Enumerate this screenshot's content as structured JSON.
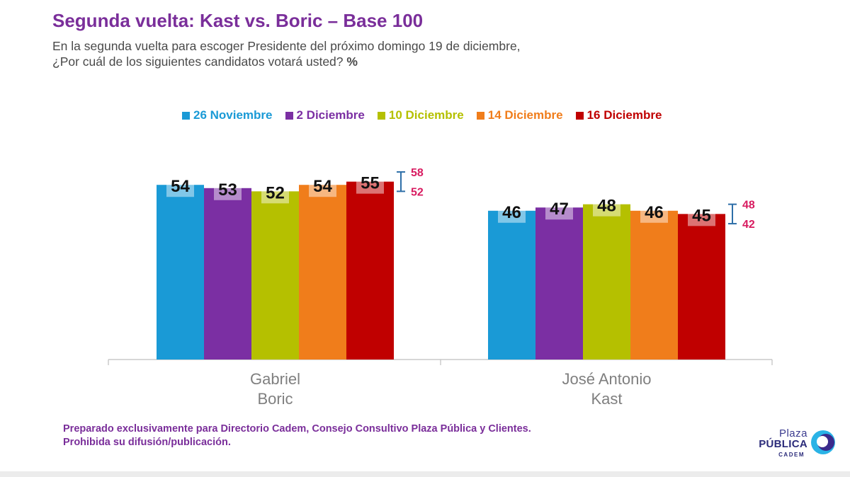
{
  "title": "Segunda vuelta: Kast vs. Boric – Base 100",
  "subtitle_line1": "En la segunda vuelta para escoger Presidente del próximo domingo 19 de diciembre,",
  "subtitle_line2": "¿Por cuál de los siguientes candidatos votará usted?",
  "subtitle_unit": "%",
  "footer_line1": "Preparado exclusivamente para Directorio Cadem, Consejo Consultivo Plaza Pública y Clientes.",
  "footer_line2": "Prohibida su difusión/publicación.",
  "logo": {
    "line1": "Plaza",
    "line2": "PÚBLICA",
    "line3": "CADEM"
  },
  "colors": {
    "title": "#7a2e9a",
    "interval": "#2e6fa8",
    "interval_label": "#d81b60",
    "axis_label": "#7f7f7f"
  },
  "chart_data": {
    "type": "bar",
    "categories": [
      {
        "label_lines": [
          "Gabriel",
          "Boric"
        ]
      },
      {
        "label_lines": [
          "José Antonio",
          "Kast"
        ]
      }
    ],
    "series": [
      {
        "name": "26 Noviembre",
        "color": "#1a9ad6",
        "values": [
          54,
          46
        ]
      },
      {
        "name": "2 Diciembre",
        "color": "#7b2fa3",
        "values": [
          53,
          47
        ]
      },
      {
        "name": "10 Diciembre",
        "color": "#b5c000",
        "values": [
          52,
          48
        ]
      },
      {
        "name": "14 Diciembre",
        "color": "#f07d1b",
        "values": [
          54,
          46
        ]
      },
      {
        "name": "16 Diciembre",
        "color": "#c00000",
        "values": [
          55,
          45
        ]
      }
    ],
    "intervals": [
      {
        "high": 58,
        "low": 52
      },
      {
        "high": 48,
        "low": 42
      }
    ],
    "ylim": [
      0,
      100
    ],
    "grid": false,
    "legend_position": "top"
  }
}
